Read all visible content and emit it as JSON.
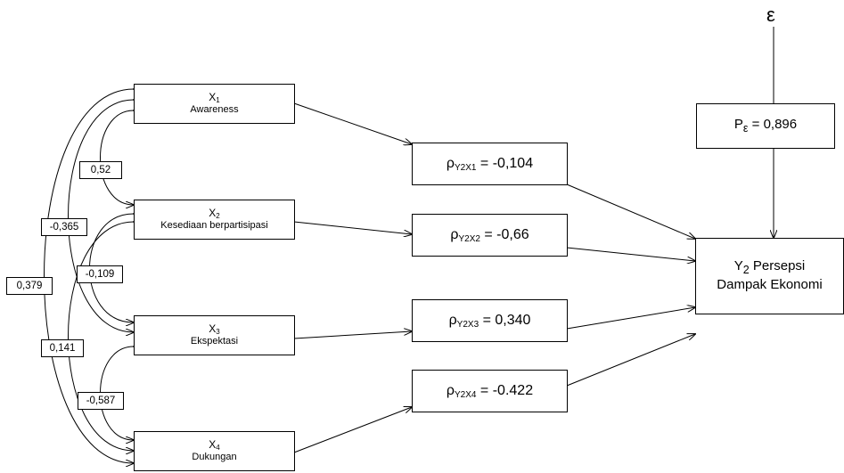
{
  "exogenous": [
    {
      "symbol": "X",
      "sub": "1",
      "name": "Awareness"
    },
    {
      "symbol": "X",
      "sub": "2",
      "name": "Kesediaan berpartisipasi"
    },
    {
      "symbol": "X",
      "sub": "3",
      "name": "Ekspektasi"
    },
    {
      "symbol": "X",
      "sub": "4",
      "name": "Dukungan"
    }
  ],
  "paths": [
    {
      "rho": "ρ",
      "sub": "Y2X1",
      "eq": " = -0,104"
    },
    {
      "rho": "ρ",
      "sub": "Y2X2",
      "eq": " = -0,66"
    },
    {
      "rho": "ρ",
      "sub": "Y2X3",
      "eq": " = 0,340"
    },
    {
      "rho": "ρ",
      "sub": "Y2X4",
      "eq": " = -0.422"
    }
  ],
  "correlations": {
    "x1_x2": "0,52",
    "x1_x3": "-0,365",
    "x1_x4": "0,379",
    "x2_x3": "-0,109",
    "x2_x4": "0,141",
    "x3_x4": "-0,587"
  },
  "outcome": {
    "symbol": "Y",
    "sub": "2",
    "line1": " Persepsi",
    "line2": "Dampak Ekonomi"
  },
  "error": {
    "symbol": "ε",
    "p": "P",
    "p_sub": "ε",
    "eq": " = 0,896"
  },
  "colors": {
    "line": "#000000",
    "background": "#ffffff"
  }
}
